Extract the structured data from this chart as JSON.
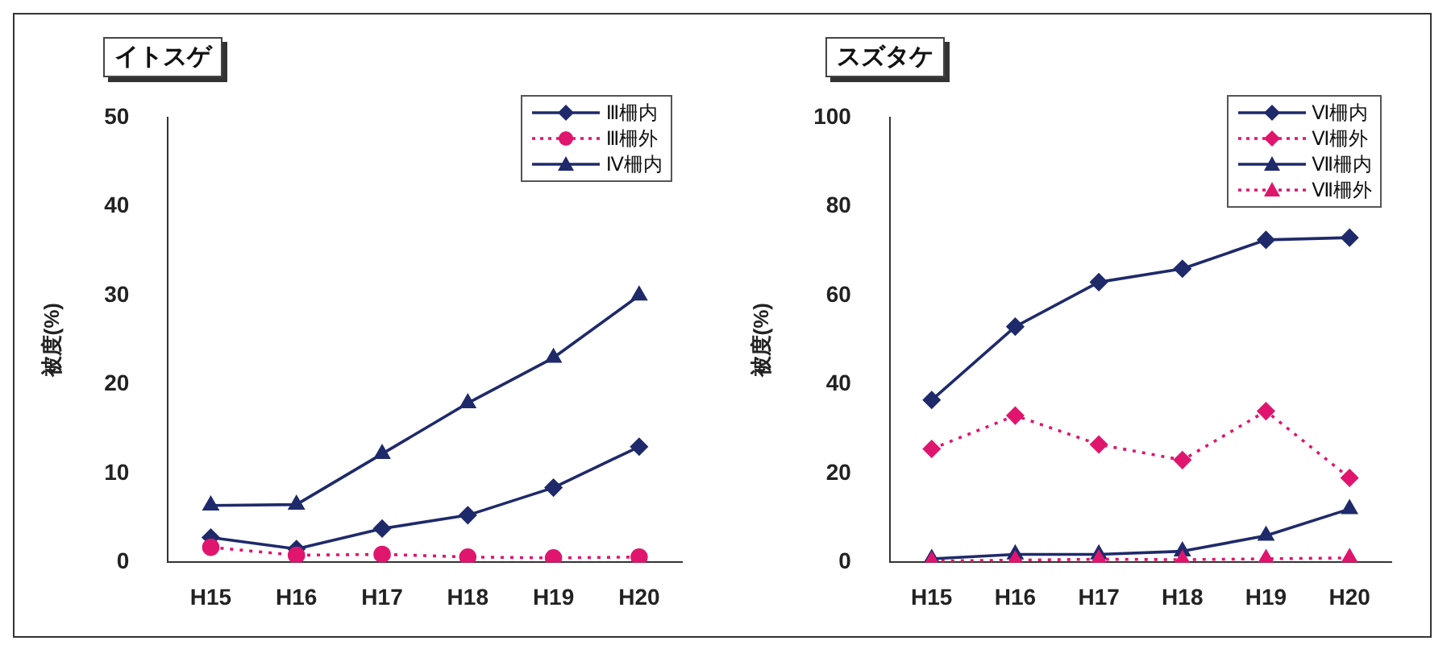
{
  "chart_data": [
    {
      "type": "line",
      "title": "イトスゲ",
      "ylabel": "被度(%)",
      "categories": [
        "H15",
        "H16",
        "H17",
        "H18",
        "H19",
        "H20"
      ],
      "ylim": [
        0,
        50
      ],
      "yticks": [
        0,
        10,
        20,
        30,
        40,
        50
      ],
      "grid": false,
      "legend": "top right",
      "series": [
        {
          "name": "Ⅲ柵内",
          "color": "#1f2a6b",
          "marker": "diamond",
          "line_style": "solid",
          "values": [
            2.8,
            1.5,
            3.8,
            5.3,
            8.4,
            13
          ]
        },
        {
          "name": "Ⅲ柵外",
          "color": "#e0156e",
          "marker": "circle",
          "line_style": "dotted",
          "values": [
            1.7,
            0.8,
            0.9,
            0.6,
            0.5,
            0.6
          ]
        },
        {
          "name": "Ⅳ柵内",
          "color": "#1f2a6b",
          "marker": "triangle",
          "line_style": "solid",
          "values": [
            6.4,
            6.5,
            12.2,
            17.9,
            23,
            30
          ]
        }
      ]
    },
    {
      "type": "line",
      "title": "スズタケ",
      "ylabel": "被度(%)",
      "categories": [
        "H15",
        "H16",
        "H17",
        "H18",
        "H19",
        "H20"
      ],
      "ylim": [
        0,
        100
      ],
      "yticks": [
        0,
        20,
        40,
        60,
        80,
        100
      ],
      "grid": false,
      "legend": "top right",
      "series": [
        {
          "name": "Ⅵ柵内",
          "color": "#1f2a6b",
          "marker": "diamond",
          "line_style": "solid",
          "values": [
            36.5,
            53,
            63,
            66,
            72.5,
            73
          ]
        },
        {
          "name": "Ⅵ柵外",
          "color": "#e0156e",
          "marker": "diamond",
          "line_style": "dotted",
          "values": [
            25.5,
            33,
            26.5,
            23,
            34,
            19
          ]
        },
        {
          "name": "Ⅶ柵内",
          "color": "#1f2a6b",
          "marker": "triangle",
          "line_style": "solid",
          "values": [
            0.8,
            1.8,
            1.8,
            2.5,
            6,
            12
          ]
        },
        {
          "name": "Ⅶ柵外",
          "color": "#e0156e",
          "marker": "triangle",
          "line_style": "dotted",
          "values": [
            0.3,
            0.5,
            0.7,
            0.6,
            0.8,
            1
          ]
        }
      ]
    }
  ]
}
